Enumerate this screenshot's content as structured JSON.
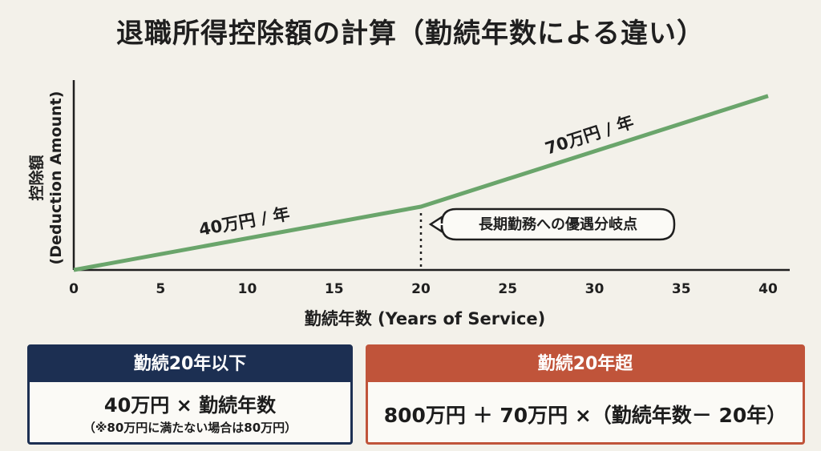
{
  "chart_data": {
    "type": "line",
    "title": "退職所得控除額の計算（勤続年数による違い）",
    "xlabel": "勤続年数 (Years of Service)",
    "ylabel_line1": "控除額",
    "ylabel_line2": "(Deduction Amount)",
    "xlim": [
      0,
      40
    ],
    "x_ticks": [
      0,
      5,
      10,
      15,
      20,
      25,
      30,
      35,
      40
    ],
    "series": [
      {
        "values": [
          [
            0,
            0
          ],
          [
            20,
            800
          ],
          [
            40,
            2200
          ]
        ]
      }
    ],
    "ylim": [
      0,
      2400
    ],
    "segment_labels": [
      "40万円 / 年",
      "70万円 / 年"
    ],
    "breakpoint_x": 20,
    "breakpoint_label": "長期勤務への優遇分岐点",
    "line_color": "#6aa56b"
  },
  "boxes": {
    "left": {
      "heading": "勤続20年以下",
      "formula": "40万円 × 勤続年数",
      "note": "（※80万円に満たない場合は80万円）"
    },
    "right": {
      "heading": "勤続20年超",
      "formula": "800万円 ＋ 70万円 ×（勤続年数－ 20年）"
    }
  }
}
